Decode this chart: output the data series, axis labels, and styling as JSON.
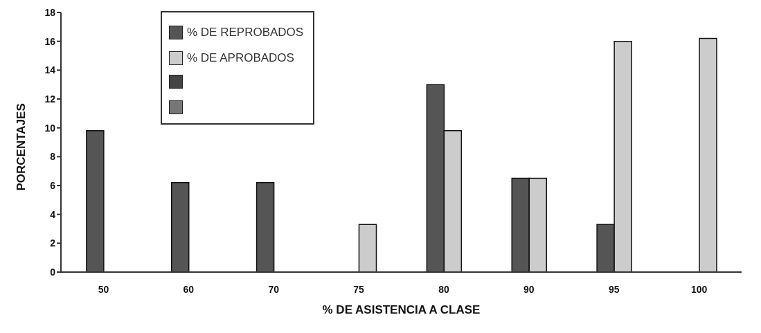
{
  "chart_data": {
    "type": "bar",
    "xlabel": "% DE ASISTENCIA A CLASE",
    "ylabel": "PORCENTAJES",
    "categories": [
      "50",
      "60",
      "70",
      "75",
      "80",
      "90",
      "95",
      "100"
    ],
    "series": [
      {
        "name": "% DE REPROBADOS",
        "color": "#555555",
        "values": [
          9.8,
          6.2,
          6.2,
          null,
          13,
          6.5,
          3.3,
          null
        ]
      },
      {
        "name": "% DE APROBADOS",
        "color": "#cccccc",
        "values": [
          null,
          null,
          null,
          3.3,
          9.8,
          6.5,
          16,
          16.2
        ]
      }
    ],
    "ylim": [
      0,
      18
    ],
    "yticks": [
      0,
      2,
      4,
      6,
      8,
      10,
      12,
      14,
      16,
      18
    ],
    "legend": "top"
  }
}
